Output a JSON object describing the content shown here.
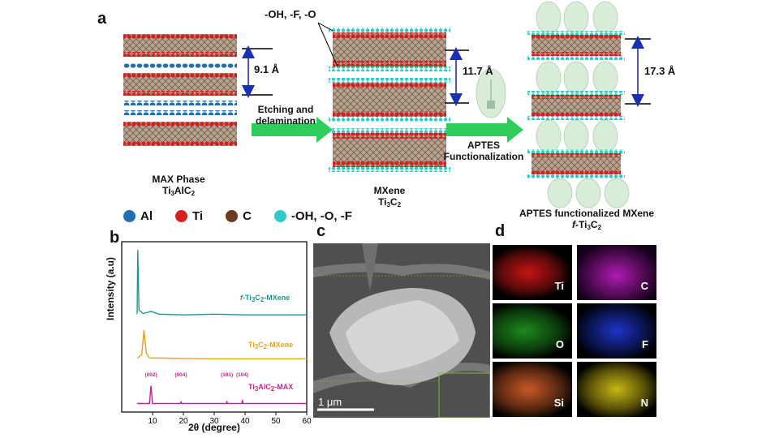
{
  "panels": {
    "a": "a",
    "b": "b",
    "c": "c",
    "d": "d"
  },
  "schematic": {
    "surface_terms": "-OH, -F, -O",
    "max_phase": {
      "name": "MAX Phase",
      "formula_main": "Ti",
      "formula_sub1": "3",
      "formula_mid": "AlC",
      "formula_sub2": "2",
      "spacing": "9.1 Å"
    },
    "mxene": {
      "name": "MXene",
      "formula_main": "Ti",
      "formula_sub1": "3",
      "formula_mid": "C",
      "formula_sub2": "2",
      "spacing": "11.7 Å"
    },
    "functionalized": {
      "name": "APTES functionalized MXene",
      "formula_prefix": "f",
      "formula_main": "-Ti",
      "formula_sub1": "3",
      "formula_mid": "C",
      "formula_sub2": "2",
      "spacing": "17.3 Å"
    },
    "step1": {
      "line1": "Etching and",
      "line2": "delamination"
    },
    "step2": {
      "line1": "APTES",
      "line2": "Functionalization"
    }
  },
  "legend": [
    {
      "label": "Al",
      "color": "#1f6fb4"
    },
    {
      "label": "Ti",
      "color": "#d81f1f"
    },
    {
      "label": "C",
      "color": "#6b3a1f"
    },
    {
      "label": "-OH, -O, -F",
      "color": "#2ec9c9"
    }
  ],
  "chart_data": {
    "type": "line",
    "xlabel": "2θ (degree)",
    "ylabel": "Intensity (a.u)",
    "xlim": [
      0,
      60
    ],
    "xticks": [
      10,
      20,
      30,
      40,
      50,
      60
    ],
    "series": [
      {
        "name": "f-Ti3C2-MXene",
        "color": "#1a9a8e",
        "peak_x": 5.2,
        "points": [
          [
            5,
            0.02
          ],
          [
            5.2,
            0.95
          ],
          [
            5.6,
            0.08
          ],
          [
            7,
            0.03
          ],
          [
            9.5,
            0.06
          ],
          [
            12,
            0.02
          ],
          [
            20,
            0.01
          ],
          [
            30,
            0.02
          ],
          [
            40,
            0.01
          ],
          [
            60,
            0.01
          ]
        ]
      },
      {
        "name": "Ti3C2-MXene",
        "color": "#e8a11a",
        "peak_x": 7.2,
        "points": [
          [
            5,
            0.02
          ],
          [
            6.5,
            0.1
          ],
          [
            7.2,
            0.6
          ],
          [
            8,
            0.12
          ],
          [
            9,
            0.03
          ],
          [
            18,
            0.02
          ],
          [
            30,
            0.01
          ],
          [
            40,
            0.01
          ],
          [
            60,
            0.01
          ]
        ]
      },
      {
        "name": "Ti3AlC2-MAX",
        "color": "#cc1f8f",
        "peak_x": 9.5,
        "points": [
          [
            5,
            0.01
          ],
          [
            9,
            0.01
          ],
          [
            9.5,
            0.45
          ],
          [
            10,
            0.01
          ],
          [
            19,
            0.01
          ],
          [
            19.2,
            0.05
          ],
          [
            19.5,
            0.01
          ],
          [
            34,
            0.01
          ],
          [
            34.1,
            0.07
          ],
          [
            34.3,
            0.01
          ],
          [
            39,
            0.01
          ],
          [
            39.1,
            0.1
          ],
          [
            39.4,
            0.01
          ],
          [
            60,
            0.01
          ]
        ]
      }
    ],
    "series_labels": [
      {
        "prefix": "f",
        "main": "-Ti",
        "sub1": "3",
        "mid": "C",
        "sub2": "2",
        "suffix": "-MXene"
      },
      {
        "prefix": "",
        "main": "Ti",
        "sub1": "3",
        "mid": "C",
        "sub2": "2",
        "suffix": "-MXene"
      },
      {
        "prefix": "",
        "main": "Ti",
        "sub1": "3",
        "mid": "AlC",
        "sub2": "2",
        "suffix": "-MAX"
      }
    ],
    "annotations": [
      {
        "text": "(002)",
        "x": 9.5
      },
      {
        "text": "(004)",
        "x": 19.2
      },
      {
        "text": "(101)",
        "x": 34.1
      },
      {
        "text": "(104)",
        "x": 39.1
      }
    ]
  },
  "tem": {
    "scale_bar": "1 μm"
  },
  "eds": [
    {
      "label": "Ti",
      "color": "#c81414"
    },
    {
      "label": "C",
      "color": "#b01cb4"
    },
    {
      "label": "O",
      "color": "#1c8a1c"
    },
    {
      "label": "F",
      "color": "#1d34c8"
    },
    {
      "label": "Si",
      "color": "#c85a28"
    },
    {
      "label": "N",
      "color": "#c8b814"
    }
  ]
}
